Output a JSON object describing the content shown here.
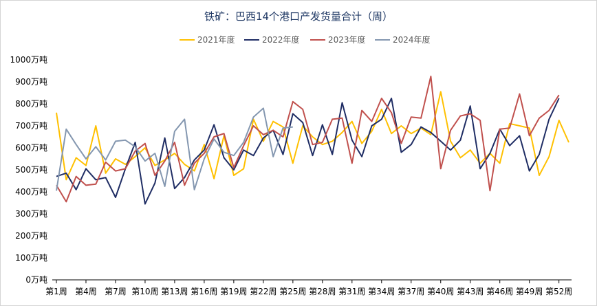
{
  "chart_data": {
    "type": "line",
    "title": "铁矿：巴西14个港口产发货量合计（周）",
    "xlabel": "",
    "ylabel": "",
    "ylim": [
      0,
      1000
    ],
    "yticks": [
      0,
      100,
      200,
      300,
      400,
      500,
      600,
      700,
      800,
      900,
      1000
    ],
    "y_tick_labels": [
      "0万吨",
      "100万吨",
      "200万吨",
      "300万吨",
      "400万吨",
      "500万吨",
      "600万吨",
      "700万吨",
      "800万吨",
      "900万吨",
      "1000万吨"
    ],
    "x_tick_weeks": [
      1,
      4,
      7,
      10,
      13,
      16,
      19,
      22,
      25,
      28,
      31,
      34,
      37,
      40,
      43,
      46,
      49,
      52
    ],
    "x_tick_labels": [
      "第1周",
      "第4周",
      "第7周",
      "第10周",
      "第13周",
      "第16周",
      "第19周",
      "第22周",
      "第25周",
      "第28周",
      "第31周",
      "第34周",
      "第37周",
      "第40周",
      "第43周",
      "第46周",
      "第49周",
      "第52周"
    ],
    "legend_position": "top-center",
    "grid": false,
    "series": [
      {
        "name": "2021年度",
        "color": "#FFC000",
        "values": [
          760,
          455,
          555,
          520,
          700,
          485,
          550,
          525,
          560,
          600,
          520,
          545,
          575,
          525,
          495,
          615,
          460,
          655,
          475,
          505,
          730,
          630,
          720,
          695,
          530,
          700,
          650,
          615,
          630,
          670,
          720,
          620,
          675,
          775,
          665,
          700,
          665,
          690,
          660,
          855,
          630,
          555,
          590,
          530,
          575,
          530,
          710,
          700,
          690,
          475,
          560,
          725,
          625
        ]
      },
      {
        "name": "2022年度",
        "color": "#1F2D64",
        "values": [
          470,
          485,
          410,
          505,
          455,
          465,
          375,
          505,
          625,
          345,
          440,
          645,
          415,
          465,
          545,
          590,
          705,
          555,
          500,
          590,
          565,
          645,
          680,
          570,
          755,
          715,
          565,
          705,
          570,
          805,
          635,
          560,
          700,
          730,
          825,
          580,
          615,
          695,
          670,
          630,
          590,
          635,
          790,
          505,
          575,
          685,
          610,
          655,
          495,
          570,
          730,
          825
        ]
      },
      {
        "name": "2023年度",
        "color": "#C0504D",
        "values": [
          430,
          355,
          470,
          430,
          435,
          535,
          495,
          505,
          585,
          620,
          475,
          540,
          625,
          430,
          530,
          575,
          650,
          665,
          510,
          610,
          700,
          660,
          680,
          650,
          810,
          775,
          615,
          625,
          730,
          735,
          530,
          770,
          720,
          825,
          760,
          620,
          740,
          735,
          925,
          505,
          680,
          745,
          755,
          725,
          405,
          685,
          690,
          845,
          655,
          735,
          770,
          840
        ]
      },
      {
        "name": "2024年度",
        "color": "#8497B0",
        "values": [
          405,
          685,
          615,
          550,
          605,
          545,
          630,
          635,
          605,
          540,
          575,
          425,
          675,
          730,
          410,
          550,
          640,
          580,
          565,
          625,
          740,
          780,
          560,
          690,
          695
        ]
      }
    ]
  }
}
